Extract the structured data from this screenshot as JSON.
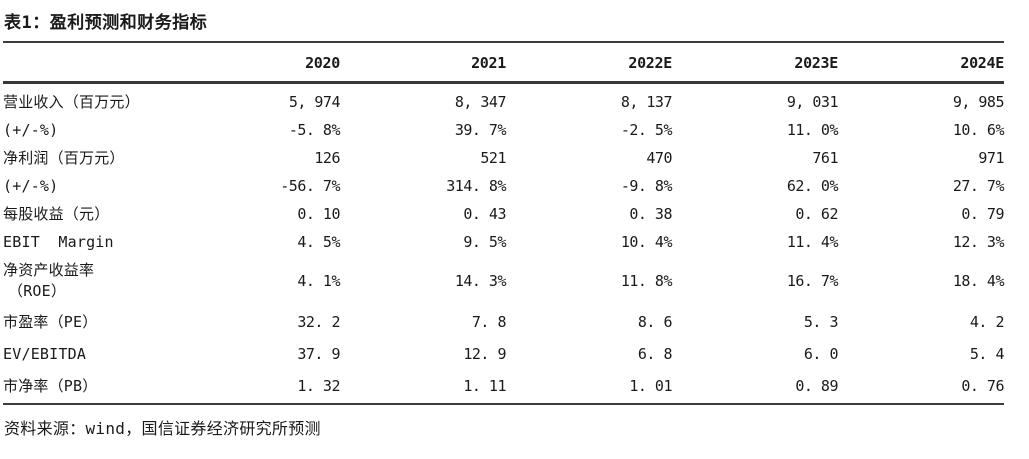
{
  "colors": {
    "text": "#1a1a1a",
    "rule": "#3c3c3c",
    "background": "#ffffff"
  },
  "table": {
    "title": "表1：盈利预测和财务指标",
    "columns": [
      "2020",
      "2021",
      "2022E",
      "2023E",
      "2024E"
    ],
    "rows": [
      {
        "label": "营业收入（百万元）",
        "values": [
          "5, 974",
          "8, 347",
          "8, 137",
          "9, 031",
          "9, 985"
        ]
      },
      {
        "label": "(+/-%)",
        "values": [
          "-5. 8%",
          "39. 7%",
          "-2. 5%",
          "11. 0%",
          "10. 6%"
        ]
      },
      {
        "label": "净利润（百万元）",
        "values": [
          "126",
          "521",
          "470",
          "761",
          "971"
        ]
      },
      {
        "label": "(+/-%)",
        "values": [
          "-56. 7%",
          "314. 8%",
          "-9. 8%",
          "62. 0%",
          "27. 7%"
        ]
      },
      {
        "label": "每股收益（元）",
        "values": [
          "0. 10",
          "0. 43",
          "0. 38",
          "0. 62",
          "0. 79"
        ]
      },
      {
        "label": "EBIT  Margin",
        "values": [
          "4. 5%",
          "9. 5%",
          "10. 4%",
          "11. 4%",
          "12. 3%"
        ]
      },
      {
        "label": "净资产收益率",
        "label2": "（ROE）",
        "values": [
          "4. 1%",
          "14. 3%",
          "11. 8%",
          "16. 7%",
          "18. 4%"
        ]
      },
      {
        "label": "市盈率（PE）",
        "values": [
          "32. 2",
          "7. 8",
          "8. 6",
          "5. 3",
          "4. 2"
        ]
      },
      {
        "label": "EV/EBITDA",
        "values": [
          "37. 9",
          "12. 9",
          "6. 8",
          "6. 0",
          "5. 4"
        ]
      },
      {
        "label": "市净率（PB）",
        "values": [
          "1. 32",
          "1. 11",
          "1. 01",
          "0. 89",
          "0. 76"
        ]
      }
    ],
    "source": "资料来源：wind，国信证券经济研究所预测"
  }
}
